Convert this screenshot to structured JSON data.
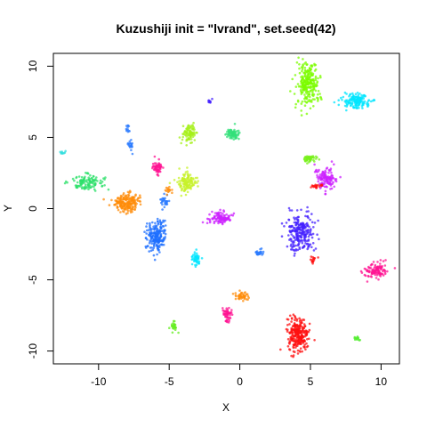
{
  "chart_data": {
    "type": "scatter",
    "title": "Kuzushiji init = \"lvrand\", set.seed(42)",
    "xlabel": "X",
    "ylabel": "Y",
    "xlim": [
      -13.2,
      11.3
    ],
    "ylim": [
      -10.9,
      10.9
    ],
    "xticks": [
      "-10",
      "-5",
      "0",
      "5",
      "10"
    ],
    "yticks": [
      "-10",
      "-5",
      "0",
      "5",
      "10"
    ],
    "grid": false,
    "legend": "none",
    "clusters": [
      {
        "color": "#7CFC00",
        "cx": 4.8,
        "cy": 8.7,
        "rx": 0.9,
        "ry": 1.6,
        "n": 260
      },
      {
        "color": "#00E5FF",
        "cx": 8.2,
        "cy": 7.6,
        "rx": 1.1,
        "ry": 0.6,
        "n": 150
      },
      {
        "color": "#A6F01A",
        "cx": -3.6,
        "cy": 5.3,
        "rx": 0.5,
        "ry": 0.7,
        "n": 90
      },
      {
        "color": "#33E07A",
        "cx": -0.5,
        "cy": 5.2,
        "rx": 0.5,
        "ry": 0.5,
        "n": 70
      },
      {
        "color": "#2EE06B",
        "cx": -10.8,
        "cy": 1.9,
        "rx": 1.3,
        "ry": 0.6,
        "n": 120
      },
      {
        "color": "#FF8C0A",
        "cx": -8.0,
        "cy": 0.4,
        "rx": 1.1,
        "ry": 0.7,
        "n": 200
      },
      {
        "color": "#C7F22A",
        "cx": -3.8,
        "cy": 1.8,
        "rx": 0.7,
        "ry": 0.8,
        "n": 130
      },
      {
        "color": "#FF1493",
        "cx": -5.8,
        "cy": 2.9,
        "rx": 0.4,
        "ry": 0.5,
        "n": 60
      },
      {
        "color": "#1E6FFF",
        "cx": -5.9,
        "cy": -1.9,
        "rx": 0.7,
        "ry": 1.2,
        "n": 200
      },
      {
        "color": "#CC22FF",
        "cx": -1.4,
        "cy": -0.7,
        "rx": 0.9,
        "ry": 0.5,
        "n": 110
      },
      {
        "color": "#00E5FF",
        "cx": -3.1,
        "cy": -3.5,
        "rx": 0.3,
        "ry": 0.6,
        "n": 45
      },
      {
        "color": "#2B7BFF",
        "cx": 1.4,
        "cy": -3.1,
        "rx": 0.3,
        "ry": 0.3,
        "n": 25
      },
      {
        "color": "#4422FF",
        "cx": 4.3,
        "cy": -1.7,
        "rx": 1.1,
        "ry": 1.4,
        "n": 240
      },
      {
        "color": "#CC22FF",
        "cx": 6.1,
        "cy": 2.1,
        "rx": 0.9,
        "ry": 0.9,
        "n": 130
      },
      {
        "color": "#77F01A",
        "cx": 5.0,
        "cy": 3.5,
        "rx": 0.6,
        "ry": 0.3,
        "n": 50
      },
      {
        "color": "#FF1493",
        "cx": 9.6,
        "cy": -4.4,
        "rx": 0.8,
        "ry": 0.6,
        "n": 110
      },
      {
        "color": "#FF8C0A",
        "cx": 0.2,
        "cy": -6.1,
        "rx": 0.6,
        "ry": 0.3,
        "n": 45
      },
      {
        "color": "#FF1493",
        "cx": -0.9,
        "cy": -7.4,
        "rx": 0.4,
        "ry": 0.6,
        "n": 55
      },
      {
        "color": "#FF1010",
        "cx": 4.1,
        "cy": -8.9,
        "rx": 0.8,
        "ry": 1.3,
        "n": 260
      },
      {
        "color": "#2B7BFF",
        "cx": -7.7,
        "cy": 4.4,
        "rx": 0.2,
        "ry": 0.4,
        "n": 20
      },
      {
        "color": "#2B7BFF",
        "cx": -7.9,
        "cy": 5.6,
        "rx": 0.15,
        "ry": 0.3,
        "n": 12
      },
      {
        "color": "#4422FF",
        "cx": -2.1,
        "cy": 7.5,
        "rx": 0.2,
        "ry": 0.2,
        "n": 10
      },
      {
        "color": "#33DDDD",
        "cx": -12.5,
        "cy": 3.9,
        "rx": 0.3,
        "ry": 0.15,
        "n": 10
      },
      {
        "color": "#66EE22",
        "cx": -4.7,
        "cy": -8.2,
        "rx": 0.25,
        "ry": 0.5,
        "n": 25
      },
      {
        "color": "#55EE33",
        "cx": 8.3,
        "cy": -9.1,
        "rx": 0.3,
        "ry": 0.15,
        "n": 15
      },
      {
        "color": "#FF1010",
        "cx": 5.2,
        "cy": -3.6,
        "rx": 0.2,
        "ry": 0.3,
        "n": 15
      },
      {
        "color": "#FF1010",
        "cx": 5.4,
        "cy": 1.6,
        "rx": 0.5,
        "ry": 0.15,
        "n": 20
      },
      {
        "color": "#2B7BFF",
        "cx": -5.3,
        "cy": 0.5,
        "rx": 0.4,
        "ry": 0.5,
        "n": 30
      },
      {
        "color": "#FF8C0A",
        "cx": -5.0,
        "cy": 1.3,
        "rx": 0.3,
        "ry": 0.3,
        "n": 15
      }
    ]
  }
}
